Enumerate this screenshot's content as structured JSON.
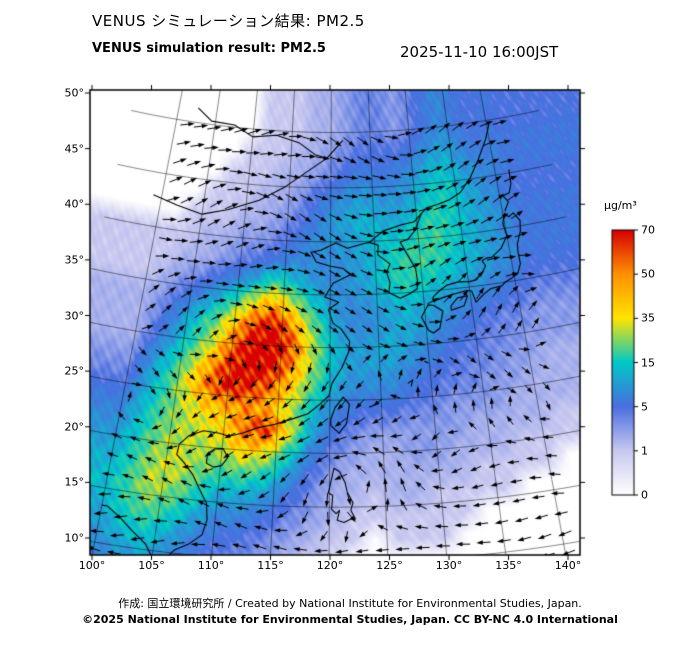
{
  "header": {
    "title_jp": "VENUS シミュレーション結果: PM2.5",
    "title_en": "VENUS simulation result: PM2.5",
    "timestamp": "2025-11-10 16:00JST"
  },
  "footer": {
    "credit": "作成: 国立環境研究所 / Created by National Institute for Environmental Studies, Japan.",
    "license": "©2025 National Institute for Environmental Studies, Japan. CC BY-NC 4.0 International"
  },
  "chart_data": {
    "type": "heatmap",
    "variable": "PM2.5",
    "units": "µg/m³",
    "title": "VENUS simulation result: PM2.5",
    "timestamp": "2025-11-10 16:00JST",
    "x_axis": {
      "name": "longitude",
      "ticks": [
        100,
        105,
        110,
        115,
        120,
        125,
        130,
        135,
        140
      ],
      "tick_labels": [
        "100°",
        "105°",
        "110°",
        "115°",
        "120°",
        "125°",
        "130°",
        "135°",
        "140°"
      ],
      "range": [
        99.8,
        141.2
      ]
    },
    "y_axis": {
      "name": "latitude",
      "ticks": [
        10,
        15,
        20,
        25,
        30,
        35,
        40,
        45,
        50
      ],
      "tick_labels": [
        "10°",
        "15°",
        "20°",
        "25°",
        "30°",
        "35°",
        "40°",
        "45°",
        "50°"
      ],
      "range": [
        8.5,
        53.5
      ]
    },
    "colorbar": {
      "label": "µg/m³",
      "values": [
        0,
        1,
        5,
        15,
        35,
        50,
        70
      ],
      "tick_labels": [
        "0",
        "1",
        "5",
        "15",
        "35",
        "50",
        "70"
      ],
      "colors": [
        "#ffffff",
        "#c8c8f0",
        "#4a6ee0",
        "#00c8c8",
        "#ffe400",
        "#ff9000",
        "#d80000"
      ]
    },
    "grid": {
      "lon_start": 100,
      "lon_step": 2,
      "lat_start": 50,
      "lat_step": -2,
      "values": [
        [
          0,
          0,
          0,
          0,
          0,
          0,
          1,
          1,
          1,
          2,
          2,
          3,
          4,
          4,
          3,
          4,
          6,
          8,
          6,
          5,
          6,
          5
        ],
        [
          0,
          0,
          0,
          0,
          0,
          1,
          1,
          1,
          2,
          2,
          3,
          4,
          5,
          5,
          5,
          6,
          9,
          11,
          8,
          6,
          7,
          6
        ],
        [
          0,
          0,
          0,
          0,
          1,
          1,
          1,
          2,
          2,
          3,
          4,
          6,
          7,
          6,
          7,
          9,
          13,
          14,
          10,
          8,
          7,
          6
        ],
        [
          0,
          0,
          0,
          1,
          1,
          1,
          2,
          2,
          3,
          5,
          7,
          9,
          10,
          9,
          9,
          11,
          15,
          16,
          12,
          9,
          7,
          5
        ],
        [
          0,
          0,
          1,
          1,
          1,
          2,
          2,
          3,
          4,
          6,
          9,
          11,
          13,
          11,
          11,
          15,
          18,
          16,
          12,
          10,
          8,
          6
        ],
        [
          1,
          1,
          1,
          2,
          2,
          3,
          3,
          4,
          6,
          8,
          9,
          10,
          12,
          14,
          15,
          18,
          20,
          16,
          12,
          10,
          8,
          6
        ],
        [
          1,
          1,
          2,
          2,
          3,
          4,
          5,
          6,
          8,
          8,
          8,
          9,
          11,
          15,
          18,
          20,
          18,
          14,
          12,
          10,
          8,
          6
        ],
        [
          1,
          2,
          3,
          4,
          6,
          8,
          12,
          20,
          14,
          10,
          8,
          9,
          11,
          15,
          18,
          16,
          14,
          12,
          10,
          8,
          7,
          5
        ],
        [
          2,
          3,
          5,
          8,
          12,
          20,
          35,
          45,
          30,
          16,
          10,
          8,
          9,
          11,
          13,
          12,
          10,
          8,
          7,
          6,
          5,
          4
        ],
        [
          2,
          4,
          8,
          14,
          22,
          40,
          60,
          70,
          50,
          25,
          12,
          8,
          8,
          10,
          12,
          10,
          8,
          6,
          5,
          4,
          4,
          3
        ],
        [
          2,
          5,
          10,
          18,
          30,
          55,
          72,
          75,
          60,
          30,
          14,
          10,
          10,
          12,
          10,
          8,
          6,
          5,
          4,
          4,
          3,
          3
        ],
        [
          3,
          8,
          14,
          25,
          45,
          65,
          75,
          70,
          50,
          28,
          14,
          10,
          10,
          10,
          8,
          6,
          5,
          4,
          4,
          3,
          3,
          2
        ],
        [
          4,
          10,
          18,
          35,
          55,
          70,
          65,
          55,
          40,
          22,
          12,
          8,
          8,
          8,
          6,
          5,
          4,
          4,
          3,
          3,
          2,
          2
        ],
        [
          6,
          12,
          20,
          30,
          40,
          45,
          50,
          45,
          30,
          15,
          8,
          6,
          5,
          5,
          4,
          4,
          3,
          3,
          3,
          2,
          2,
          2
        ],
        [
          8,
          14,
          22,
          28,
          32,
          38,
          55,
          65,
          35,
          12,
          6,
          4,
          3,
          3,
          3,
          3,
          3,
          2,
          2,
          2,
          2,
          1
        ],
        [
          10,
          16,
          25,
          30,
          28,
          30,
          40,
          35,
          18,
          8,
          4,
          3,
          2,
          2,
          3,
          3,
          2,
          2,
          2,
          1,
          1,
          1
        ],
        [
          12,
          18,
          28,
          32,
          25,
          20,
          22,
          18,
          10,
          5,
          3,
          2,
          2,
          2,
          2,
          2,
          2,
          1,
          1,
          1,
          1,
          0
        ],
        [
          14,
          20,
          30,
          25,
          18,
          12,
          12,
          10,
          6,
          4,
          2,
          2,
          1,
          2,
          2,
          1,
          1,
          1,
          1,
          0,
          0,
          0
        ],
        [
          12,
          18,
          22,
          18,
          12,
          8,
          8,
          6,
          4,
          3,
          2,
          1,
          1,
          1,
          1,
          1,
          1,
          0,
          0,
          0,
          0,
          0
        ],
        [
          10,
          14,
          16,
          12,
          8,
          6,
          5,
          4,
          3,
          2,
          1,
          1,
          0,
          1,
          1,
          1,
          0,
          0,
          0,
          0,
          0,
          0
        ],
        [
          8,
          10,
          12,
          8,
          6,
          4,
          4,
          3,
          2,
          1,
          1,
          0,
          0,
          0,
          0,
          0,
          0,
          0,
          0,
          0,
          0,
          0
        ],
        [
          6,
          8,
          8,
          6,
          4,
          3,
          3,
          2,
          1,
          1,
          0,
          0,
          0,
          0,
          0,
          0,
          0,
          0,
          0,
          0,
          0,
          0
        ]
      ]
    },
    "wind_field": {
      "vortex_center": [
        122.5,
        17.5
      ],
      "description": "black wind-vector arrows overlaid across the map; cyclonic swirl east of the Luzon Strait, westerlies in the north, northeasterlies along the southeast China coast"
    }
  }
}
